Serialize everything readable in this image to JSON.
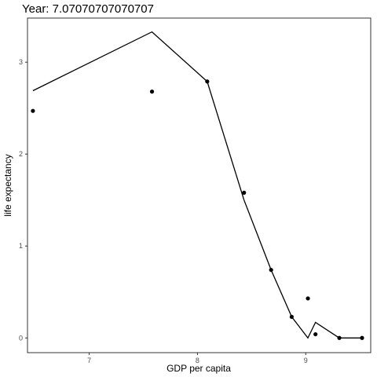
{
  "chart_data": {
    "type": "scatter",
    "title": "Year: 7.07070707070707",
    "xlabel": "GDP per capita",
    "ylabel": "life expectancy",
    "xlim": [
      6.43,
      9.6
    ],
    "ylim": [
      -0.16,
      3.48
    ],
    "x_ticks": [
      7,
      8,
      9
    ],
    "x_tick_labels": [
      "7",
      "8",
      "9"
    ],
    "y_ticks": [
      0,
      1,
      2,
      3
    ],
    "y_tick_labels": [
      "0",
      "1",
      "2",
      "3"
    ],
    "grid": false,
    "legend": "none",
    "series": [
      {
        "kind": "points",
        "x": [
          6.48,
          7.58,
          8.09,
          8.43,
          8.68,
          8.87,
          9.02,
          9.09,
          9.31,
          9.52
        ],
        "y": [
          2.47,
          2.68,
          2.79,
          1.58,
          0.74,
          0.23,
          0.43,
          0.04,
          0.0,
          0.0
        ]
      },
      {
        "kind": "line",
        "x": [
          6.48,
          7.58,
          8.09,
          8.43,
          8.68,
          8.87,
          9.02,
          9.09,
          9.31,
          9.52
        ],
        "y": [
          2.69,
          3.33,
          2.79,
          1.5,
          0.74,
          0.23,
          0.0,
          0.17,
          0.0,
          0.0
        ]
      }
    ],
    "colors": {
      "points": "#000000",
      "line": "#000000",
      "panel_border": "#333333",
      "tick_text": "#4d4d4d"
    }
  }
}
